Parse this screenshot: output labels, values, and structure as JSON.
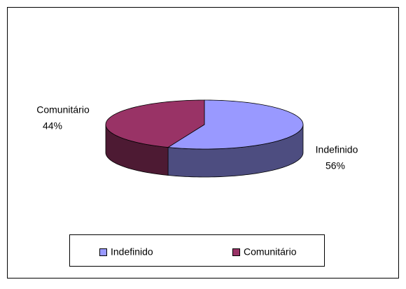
{
  "chart_data": {
    "type": "pie",
    "categories": [
      "Indefinido",
      "Comunitário"
    ],
    "values": [
      56,
      44
    ],
    "value_labels": [
      "56%",
      "44%"
    ],
    "colors": [
      "#9999ff",
      "#993366"
    ],
    "legend": "bottom"
  }
}
